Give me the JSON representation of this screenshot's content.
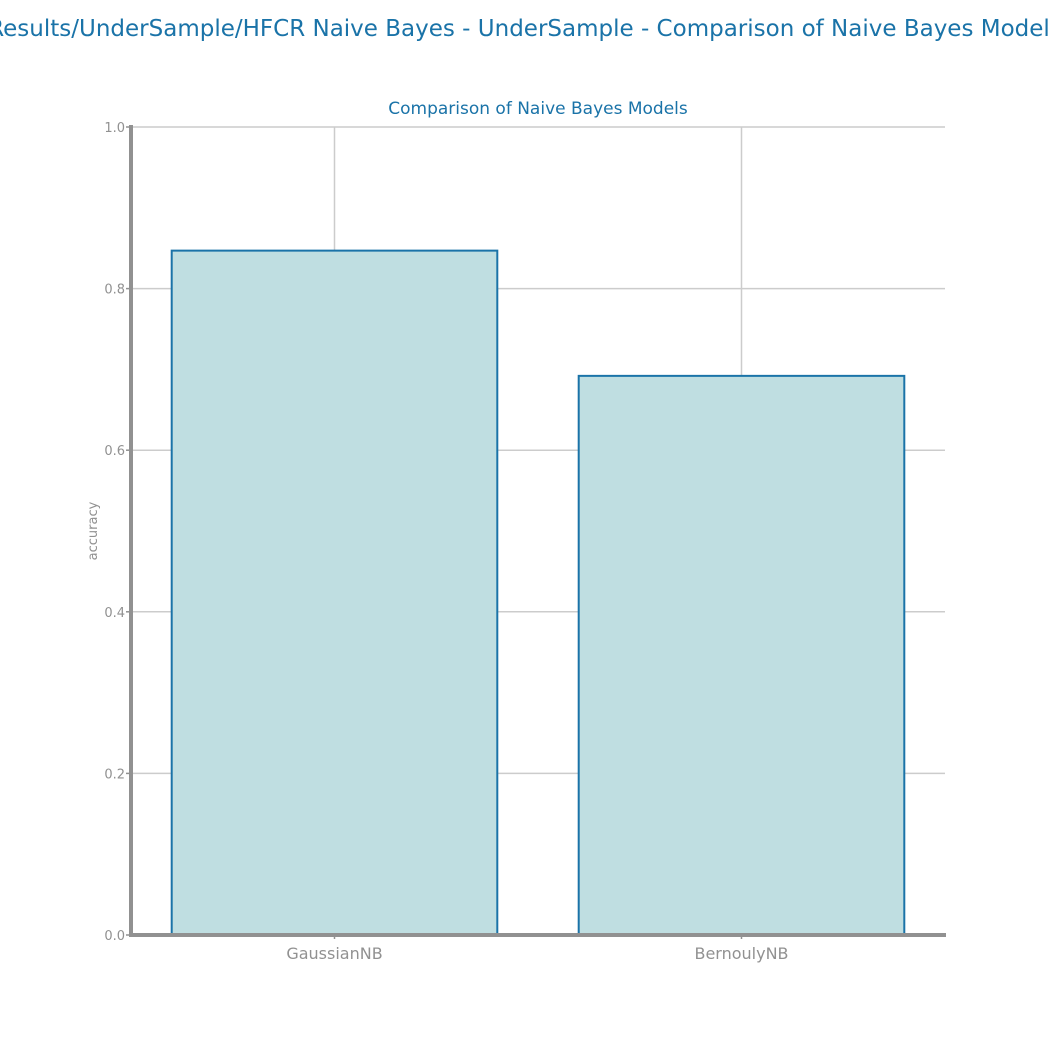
{
  "page": {
    "suptitle": "Results/UnderSample/HFCR Naive Bayes - UnderSample - Comparison of Naive Bayes Models"
  },
  "chart_data": {
    "type": "bar",
    "title": "Comparison of Naive Bayes Models",
    "xlabel": "",
    "ylabel": "accuracy",
    "categories": [
      "GaussianNB",
      "BernoulyNB"
    ],
    "values": [
      0.847,
      0.692
    ],
    "ylim": [
      0,
      1.0
    ],
    "yticks": [
      "0.0",
      "0.2",
      "0.4",
      "0.6",
      "0.8",
      "1.0"
    ],
    "grid": true,
    "legend": "none",
    "colors": {
      "bar_fill": "#bfdee1",
      "bar_edge": "#1a73a8",
      "title": "#1a73a8",
      "axis": "#919191",
      "grid": "#cccccc"
    }
  }
}
